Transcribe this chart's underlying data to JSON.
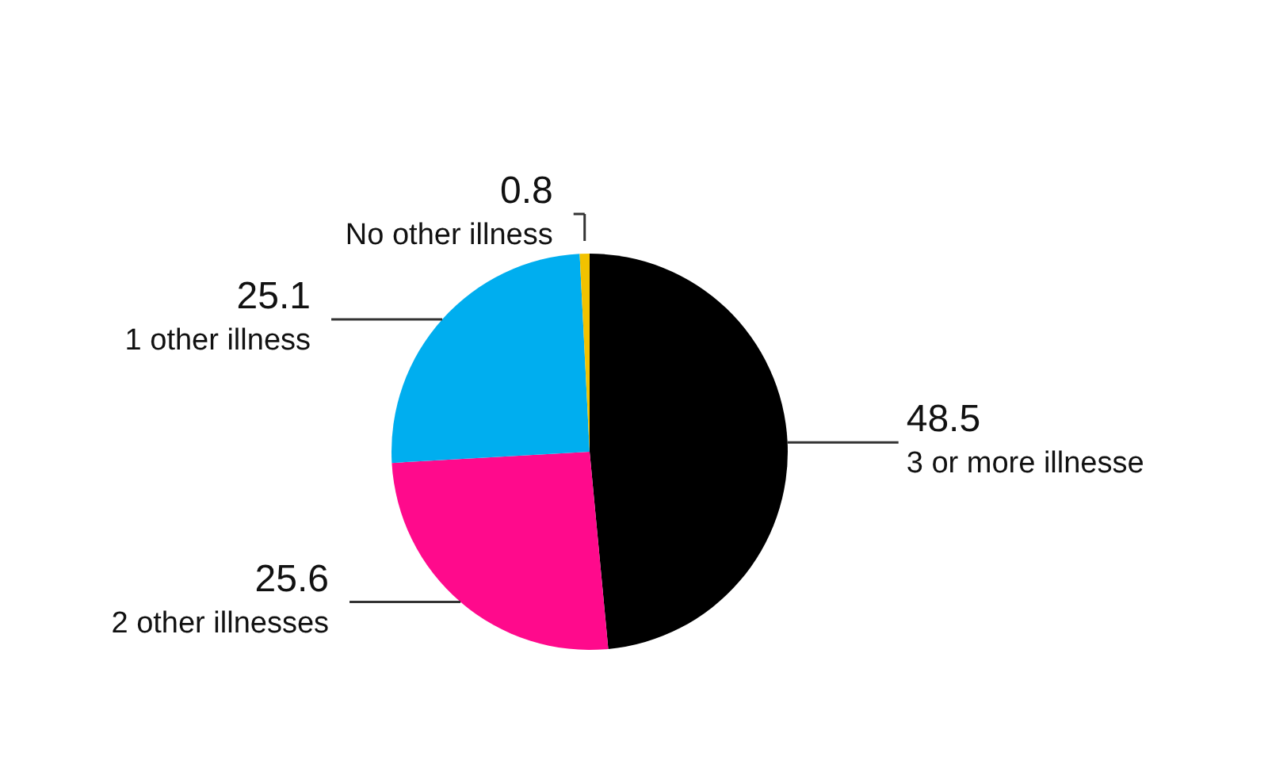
{
  "chart_data": {
    "type": "pie",
    "categories": [
      "3 or more illnesse",
      "2 other illnesses",
      "1 other illness",
      "No other illness"
    ],
    "values": [
      48.5,
      25.6,
      25.1,
      0.8
    ],
    "colors": [
      "#000000",
      "#ff0a8c",
      "#00aeef",
      "#f2c200"
    ],
    "data_labels": true
  }
}
